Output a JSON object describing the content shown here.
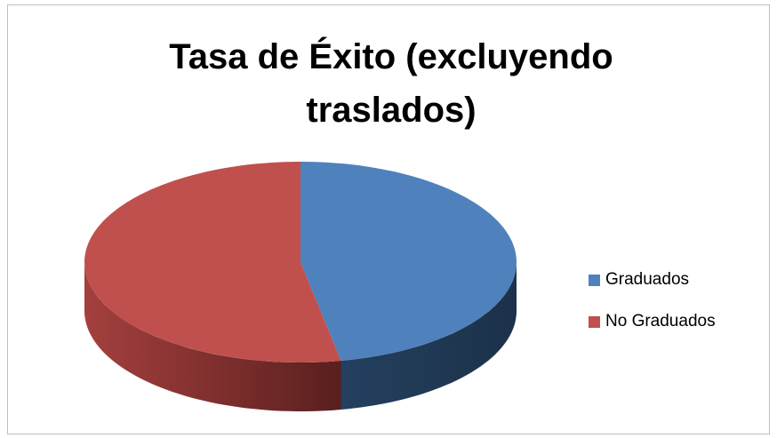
{
  "chart_data": {
    "type": "pie",
    "title": "Tasa de Éxito (excluyendo traslados)",
    "categories": [
      "Graduados",
      "No Graduados"
    ],
    "values": [
      47,
      53
    ],
    "colors": [
      "#4f81bd",
      "#c0504d"
    ],
    "legend": "right"
  }
}
